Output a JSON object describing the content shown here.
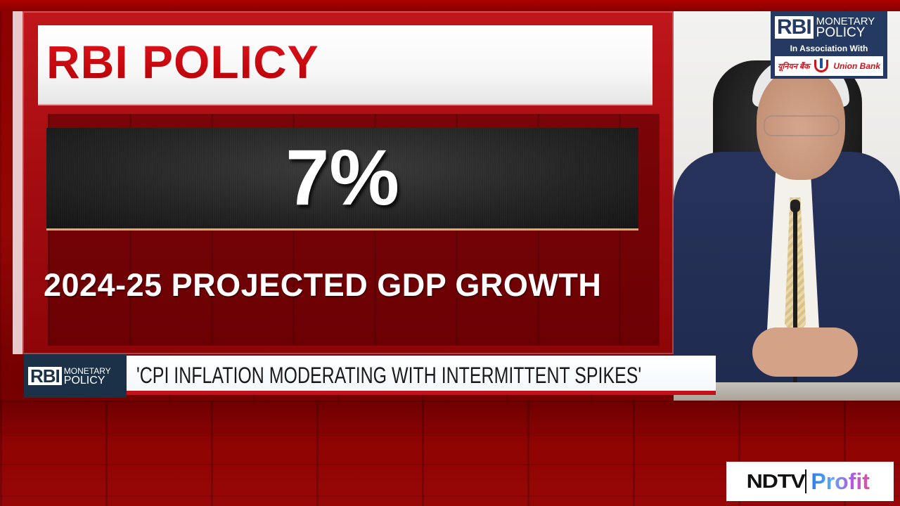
{
  "graphic": {
    "title": "RBI POLICY",
    "value": "7%",
    "caption": "2024-25 PROJECTED GDP GROWTH"
  },
  "sponsor_badge": {
    "rbi": "RBI",
    "monetary": "MONETARY",
    "policy": "POLICY",
    "association": "In Association With",
    "bank_hindi": "यूनियन बैंक",
    "bank_name": "Union Bank"
  },
  "ticker": {
    "logo_rbi": "RBI",
    "logo_monetary": "MONETARY",
    "logo_policy": "POLICY",
    "headline": "'CPI INFLATION MODERATING WITH INTERMITTENT SPIKES'"
  },
  "channel": {
    "ndtv": "NDTV",
    "profit": "Profit"
  },
  "colors": {
    "accent_red": "#c2060c",
    "badge_navy": "#253a63",
    "ticker_navy": "#1b3147",
    "profit_blue": "#2b7de9",
    "profit_pink": "#e64fa0"
  }
}
